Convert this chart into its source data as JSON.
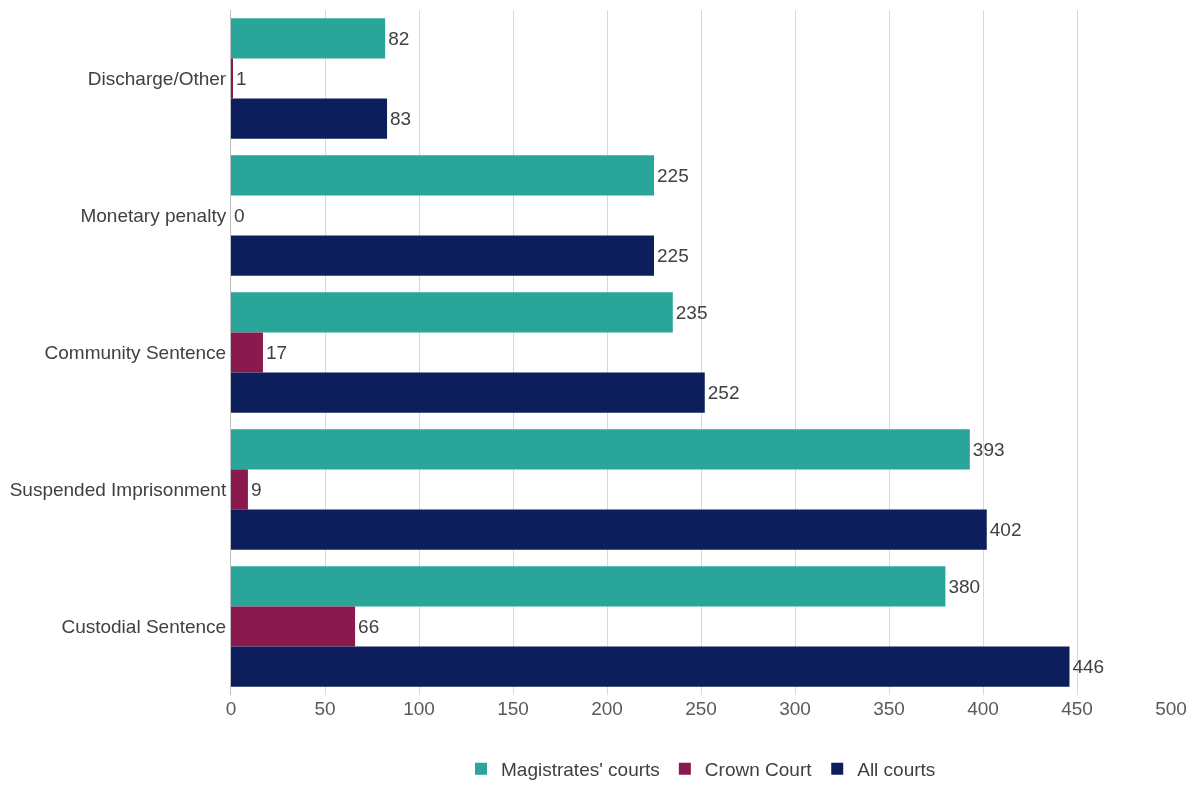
{
  "chart_data": {
    "type": "bar",
    "orientation": "horizontal",
    "categories": [
      "Discharge/Other",
      "Monetary penalty",
      "Community Sentence",
      "Suspended Imprisonment",
      "Custodial Sentence"
    ],
    "series": [
      {
        "name": "Magistrates' courts",
        "color": "#2aa59a",
        "values": [
          82,
          225,
          235,
          393,
          380
        ]
      },
      {
        "name": "Crown Court",
        "color": "#8a1a4e",
        "values": [
          1,
          0,
          17,
          9,
          66
        ]
      },
      {
        "name": "All courts",
        "color": "#0c1f5c",
        "values": [
          83,
          225,
          252,
          402,
          446
        ]
      }
    ],
    "xlim": [
      0,
      500
    ],
    "xticks": [
      0,
      50,
      100,
      150,
      200,
      250,
      300,
      350,
      400,
      450,
      500
    ],
    "grid": "x",
    "legend": "bottom",
    "data_labels": true
  }
}
